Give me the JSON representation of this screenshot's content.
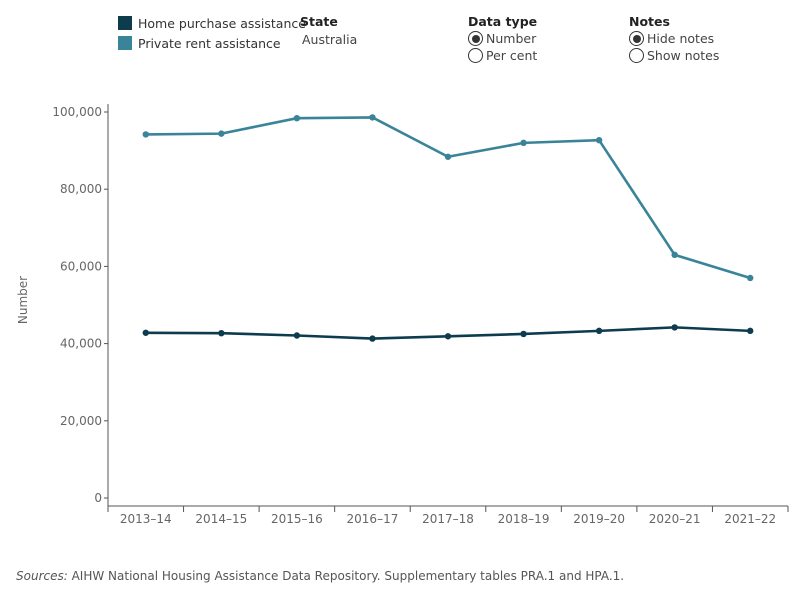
{
  "legend": [
    {
      "label": "Home purchase assistance",
      "color": "#0e3c4f"
    },
    {
      "label": "Private rent assistance",
      "color": "#3a8499"
    }
  ],
  "state": {
    "title": "State",
    "value": "Australia"
  },
  "data_type": {
    "title": "Data type",
    "options": [
      "Number",
      "Per cent"
    ],
    "selected": "Number"
  },
  "notes": {
    "title": "Notes",
    "options": [
      "Hide notes",
      "Show notes"
    ],
    "selected": "Hide notes"
  },
  "sources": {
    "prefix": "Sources:",
    "text": " AIHW National Housing Assistance Data Repository. Supplementary tables PRA.1 and HPA.1."
  },
  "chart_data": {
    "type": "line",
    "ylabel": "Number",
    "ylim": [
      0,
      100000
    ],
    "yticks": [
      0,
      20000,
      40000,
      60000,
      80000,
      100000
    ],
    "ytick_labels": [
      "0",
      "20,000",
      "40,000",
      "60,000",
      "80,000",
      "100,000"
    ],
    "categories": [
      "2013–14",
      "2014–15",
      "2015–16",
      "2016–17",
      "2017–18",
      "2018–19",
      "2019–20",
      "2020–21",
      "2021–22"
    ],
    "series": [
      {
        "name": "Private rent assistance",
        "color": "#3a8499",
        "values": [
          94200,
          94400,
          98400,
          98600,
          88400,
          92000,
          92700,
          63000,
          57000
        ]
      },
      {
        "name": "Home purchase assistance",
        "color": "#0e3c4f",
        "values": [
          42800,
          42700,
          42100,
          41300,
          41900,
          42500,
          43300,
          44200,
          43300
        ]
      }
    ]
  }
}
